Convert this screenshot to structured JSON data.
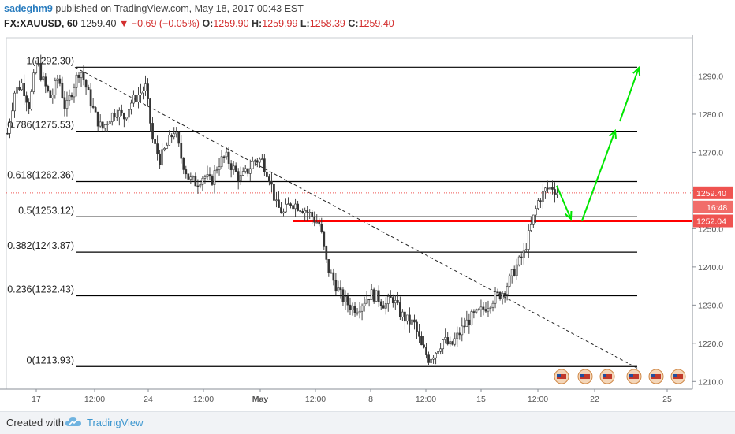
{
  "header": {
    "author": "sadeghm9",
    "published_text": "published on TradingView.com, May 18, 2017 00:43 EST",
    "symbol": "FX:XAUUSD, 60",
    "last": "1259.40",
    "change_arrow": "▼",
    "change": "−0.69 (−0.05%)",
    "o_label": "O:",
    "o_val": "1259.90",
    "h_label": "H:",
    "h_val": "1259.99",
    "l_label": "L:",
    "l_val": "1258.39",
    "c_label": "C:",
    "c_val": "1259.40"
  },
  "footer": {
    "created_with": "Created with",
    "brand": "TradingView"
  },
  "colors": {
    "up": "#26a69a",
    "down": "#ef5350",
    "candle": "#333333",
    "fib": "#000000",
    "support": "#ff0000",
    "arrows": "#00e600",
    "price_tag": "#ef5350",
    "last_tag": "#ef5350"
  },
  "chart_data": {
    "type": "candlestick",
    "symbol": "FX:XAUUSD",
    "interval": "60",
    "ylim": [
      1208,
      1300
    ],
    "y_ticks": [
      1210,
      1220,
      1230,
      1240,
      1250,
      1260,
      1270,
      1280,
      1290
    ],
    "x_ticks": [
      "17",
      "12:00",
      "24",
      "12:00",
      "May",
      "12:00",
      "8",
      "12:00",
      "15",
      "12:00",
      "22",
      "25"
    ],
    "fib_levels": [
      {
        "label": "1(1292.30)",
        "value": 1292.3
      },
      {
        "label": "0.786(1275.53)",
        "value": 1275.53
      },
      {
        "label": "0.618(1262.36)",
        "value": 1262.36
      },
      {
        "label": "0.5(1253.12)",
        "value": 1253.12
      },
      {
        "label": "0.382(1243.87)",
        "value": 1243.87
      },
      {
        "label": "0.236(1232.43)",
        "value": 1232.43
      },
      {
        "label": "0(1213.93)",
        "value": 1213.93
      }
    ],
    "support_level": 1252.04,
    "support_label": "1252.04",
    "last_price": 1259.4,
    "last_price_label": "1259.40",
    "countdown": "16:48",
    "price_path": [
      [
        0,
        1275
      ],
      [
        3,
        1286
      ],
      [
        6,
        1288
      ],
      [
        9,
        1282
      ],
      [
        12,
        1294
      ],
      [
        15,
        1288
      ],
      [
        18,
        1284
      ],
      [
        21,
        1290
      ],
      [
        24,
        1281
      ],
      [
        27,
        1287
      ],
      [
        30,
        1292
      ],
      [
        33,
        1286
      ],
      [
        36,
        1280
      ],
      [
        39,
        1276
      ],
      [
        42,
        1279
      ],
      [
        45,
        1281
      ],
      [
        48,
        1279
      ],
      [
        51,
        1283
      ],
      [
        54,
        1285
      ],
      [
        57,
        1287
      ],
      [
        60,
        1273
      ],
      [
        63,
        1268
      ],
      [
        66,
        1272
      ],
      [
        69,
        1276
      ],
      [
        72,
        1268
      ],
      [
        75,
        1263
      ],
      [
        78,
        1262
      ],
      [
        81,
        1264
      ],
      [
        84,
        1262
      ],
      [
        87,
        1267
      ],
      [
        90,
        1269
      ],
      [
        93,
        1266
      ],
      [
        96,
        1263
      ],
      [
        99,
        1265
      ],
      [
        102,
        1268
      ],
      [
        105,
        1268
      ],
      [
        108,
        1264
      ],
      [
        111,
        1256
      ],
      [
        114,
        1254
      ],
      [
        117,
        1257
      ],
      [
        120,
        1256
      ],
      [
        123,
        1255
      ],
      [
        126,
        1253
      ],
      [
        129,
        1251
      ],
      [
        132,
        1240
      ],
      [
        135,
        1236
      ],
      [
        138,
        1232
      ],
      [
        141,
        1230
      ],
      [
        144,
        1229
      ],
      [
        147,
        1231
      ],
      [
        150,
        1233
      ],
      [
        153,
        1232
      ],
      [
        156,
        1230
      ],
      [
        159,
        1232
      ],
      [
        162,
        1228
      ],
      [
        165,
        1226
      ],
      [
        168,
        1225
      ],
      [
        171,
        1219
      ],
      [
        174,
        1216
      ],
      [
        177,
        1218
      ],
      [
        180,
        1221
      ],
      [
        183,
        1219
      ],
      [
        186,
        1222
      ],
      [
        189,
        1225
      ],
      [
        192,
        1227
      ],
      [
        195,
        1228
      ],
      [
        198,
        1230
      ],
      [
        201,
        1232
      ],
      [
        204,
        1233
      ],
      [
        207,
        1236
      ],
      [
        210,
        1240
      ],
      [
        213,
        1243
      ],
      [
        216,
        1250
      ],
      [
        219,
        1257
      ],
      [
        222,
        1260
      ],
      [
        225,
        1261
      ],
      [
        228,
        1259
      ]
    ]
  }
}
